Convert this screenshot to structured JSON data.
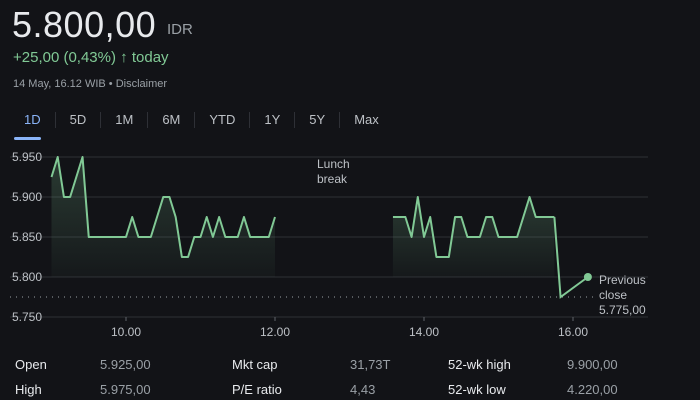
{
  "header": {
    "price": "5.800,00",
    "currency": "IDR",
    "change": "+25,00 (0,43%)",
    "change_arrow": "↑",
    "change_period": "today",
    "timestamp": "14 May, 16.12 WIB",
    "separator": "•",
    "disclaimer": "Disclaimer",
    "positive_color": "#81c995"
  },
  "tabs": [
    {
      "label": "1D",
      "active": true
    },
    {
      "label": "5D"
    },
    {
      "label": "1M"
    },
    {
      "label": "6M"
    },
    {
      "label": "YTD"
    },
    {
      "label": "1Y"
    },
    {
      "label": "5Y"
    },
    {
      "label": "Max"
    }
  ],
  "chart_data": {
    "type": "line",
    "y_ticks": [
      "5.950",
      "5.900",
      "5.850",
      "5.800",
      "5.750"
    ],
    "y_tick_values": [
      5950,
      5900,
      5850,
      5800,
      5750
    ],
    "x_ticks": [
      "10.00",
      "12.00",
      "14.00",
      "16.00"
    ],
    "ylim": [
      5750,
      5950
    ],
    "grid": true,
    "line_color": "#81c995",
    "annotation": "Lunch break",
    "previous_close": {
      "label_line1": "Previous",
      "label_line2": "close",
      "label_value": "5.775,00",
      "value": 5775
    },
    "segments": [
      [
        [
          "09:00",
          5925
        ],
        [
          "09:05",
          5950
        ],
        [
          "09:10",
          5900
        ],
        [
          "09:15",
          5900
        ],
        [
          "09:25",
          5950
        ],
        [
          "09:30",
          5850
        ],
        [
          "10:00",
          5850
        ],
        [
          "10:05",
          5875
        ],
        [
          "10:10",
          5850
        ],
        [
          "10:20",
          5850
        ],
        [
          "10:30",
          5900
        ],
        [
          "10:35",
          5900
        ],
        [
          "10:40",
          5875
        ],
        [
          "10:45",
          5825
        ],
        [
          "10:50",
          5825
        ],
        [
          "10:55",
          5850
        ],
        [
          "11:00",
          5850
        ],
        [
          "11:05",
          5875
        ],
        [
          "11:10",
          5850
        ],
        [
          "11:15",
          5875
        ],
        [
          "11:20",
          5850
        ],
        [
          "11:30",
          5850
        ],
        [
          "11:35",
          5875
        ],
        [
          "11:40",
          5850
        ],
        [
          "11:55",
          5850
        ],
        [
          "12:00",
          5875
        ]
      ],
      [
        [
          "13:35",
          5875
        ],
        [
          "13:45",
          5875
        ],
        [
          "13:50",
          5850
        ],
        [
          "13:55",
          5900
        ],
        [
          "14:00",
          5850
        ],
        [
          "14:05",
          5875
        ],
        [
          "14:10",
          5825
        ],
        [
          "14:20",
          5825
        ],
        [
          "14:25",
          5875
        ],
        [
          "14:30",
          5875
        ],
        [
          "14:35",
          5850
        ],
        [
          "14:45",
          5850
        ],
        [
          "14:50",
          5875
        ],
        [
          "14:55",
          5875
        ],
        [
          "15:00",
          5850
        ],
        [
          "15:15",
          5850
        ],
        [
          "15:25",
          5900
        ],
        [
          "15:30",
          5875
        ],
        [
          "15:45",
          5875
        ]
      ]
    ],
    "closing_segment": [
      [
        "15:45",
        5875
      ],
      [
        "15:50",
        5775
      ],
      [
        "16:12",
        5800
      ]
    ]
  },
  "stats": [
    [
      {
        "label": "Open",
        "value": "5.925,00"
      },
      {
        "label": "Mkt cap",
        "value": "31,73T"
      },
      {
        "label": "52-wk high",
        "value": "9.900,00"
      }
    ],
    [
      {
        "label": "High",
        "value": "5.975,00"
      },
      {
        "label": "P/E ratio",
        "value": "4,43"
      },
      {
        "label": "52-wk low",
        "value": "4.220,00"
      }
    ]
  ]
}
